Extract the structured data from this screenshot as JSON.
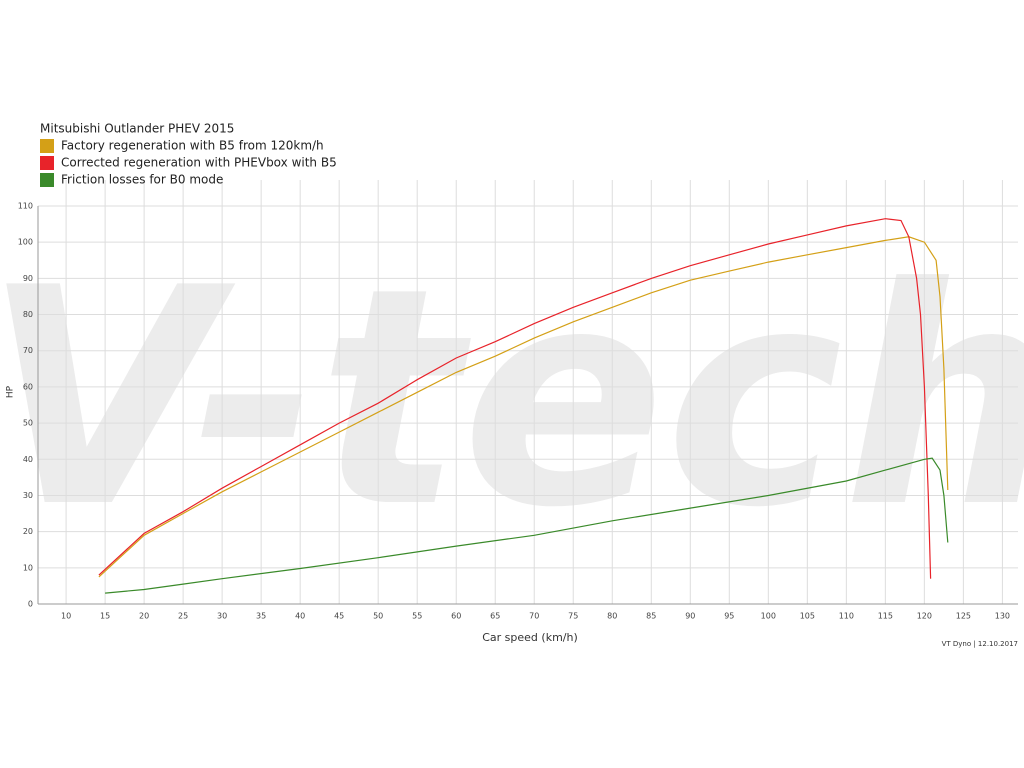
{
  "chart_data": {
    "type": "line",
    "title": "Mitsubishi Outlander PHEV 2015",
    "x_label": "Car speed (km/h)",
    "y_label": "HP",
    "footer": "VT Dyno | 12.10.2017",
    "watermark": "V-tech",
    "xlim": [
      6.4,
      132
    ],
    "ylim": [
      0,
      110
    ],
    "xticks": [
      10,
      15,
      20,
      25,
      30,
      35,
      40,
      45,
      50,
      55,
      60,
      65,
      70,
      75,
      80,
      85,
      90,
      95,
      100,
      105,
      110,
      115,
      120,
      125,
      130
    ],
    "yticks": [
      0,
      10,
      20,
      30,
      40,
      50,
      60,
      70,
      80,
      90,
      100,
      110
    ],
    "grid": true,
    "series": [
      {
        "name": "Factory regeneration with B5 from 120km/h",
        "color": "#d4a017",
        "x": [
          14.2,
          20,
          25,
          30,
          35,
          40,
          45,
          50,
          55,
          60,
          65,
          70,
          75,
          80,
          85,
          90,
          95,
          100,
          105,
          110,
          115,
          118,
          120,
          121.5,
          122,
          122.5,
          123
        ],
        "values": [
          7.5,
          19,
          25,
          31,
          36.5,
          42,
          47.5,
          53,
          58.5,
          64,
          68.5,
          73.5,
          78,
          82,
          86,
          89.5,
          92,
          94.5,
          96.5,
          98.5,
          100.5,
          101.5,
          100,
          95,
          85,
          65,
          31.5
        ]
      },
      {
        "name": "Corrected regeneration with PHEVbox with B5",
        "color": "#e8232a",
        "x": [
          14.2,
          20,
          25,
          30,
          35,
          40,
          45,
          50,
          55,
          60,
          65,
          70,
          75,
          80,
          85,
          90,
          95,
          100,
          105,
          110,
          115,
          117,
          118,
          119,
          119.5,
          120,
          120.5,
          120.8
        ],
        "values": [
          8,
          19.5,
          25.5,
          32,
          38,
          44,
          50,
          55.5,
          62,
          68,
          72.5,
          77.5,
          82,
          86,
          90,
          93.5,
          96.5,
          99.5,
          102,
          104.5,
          106.5,
          106,
          101.5,
          90,
          80,
          60,
          30,
          7
        ]
      },
      {
        "name": "Friction losses for B0 mode",
        "color": "#3a8a2a",
        "x": [
          15,
          20,
          25,
          30,
          40,
          50,
          60,
          70,
          80,
          90,
          100,
          110,
          115,
          120,
          121,
          122,
          122.5,
          123
        ],
        "values": [
          3,
          4,
          5.5,
          7,
          9.8,
          12.8,
          16,
          19,
          23,
          26.5,
          30,
          34,
          37,
          40,
          40.3,
          37,
          30,
          17
        ]
      }
    ]
  }
}
